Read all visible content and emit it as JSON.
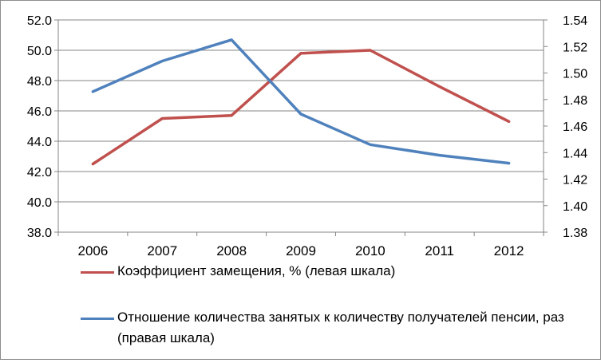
{
  "chart_data": {
    "type": "line",
    "categories": [
      "2006",
      "2007",
      "2008",
      "2009",
      "2010",
      "2011",
      "2012"
    ],
    "left_axis": {
      "range": [
        38.0,
        52.0
      ],
      "ticks": [
        "38.0",
        "40.0",
        "42.0",
        "44.0",
        "46.0",
        "48.0",
        "50.0",
        "52.0"
      ]
    },
    "right_axis": {
      "range": [
        1.38,
        1.54
      ],
      "ticks": [
        "1.38",
        "1.40",
        "1.42",
        "1.44",
        "1.46",
        "1.48",
        "1.50",
        "1.52",
        "1.54"
      ]
    },
    "series": [
      {
        "name": "Коэффициент замещения, % (левая шкала)",
        "axis": "left",
        "color": "#c0504d",
        "values": [
          42.5,
          45.5,
          45.7,
          49.8,
          50.0,
          47.6,
          45.3
        ]
      },
      {
        "name": "Отношение количества занятых к количеству получателей пенсии, раз (правая шкала)",
        "axis": "right",
        "color": "#4f81bd",
        "values": [
          1.486,
          1.509,
          1.525,
          1.469,
          1.446,
          1.438,
          1.432
        ]
      }
    ],
    "grid": true,
    "legend": "bottom"
  }
}
